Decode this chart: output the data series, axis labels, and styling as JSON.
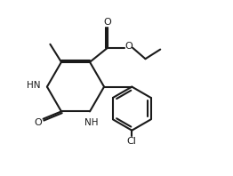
{
  "bg_color": "#ffffff",
  "line_color": "#1a1a1a",
  "lw": 1.5,
  "fs": 7.5,
  "fw": 2.62,
  "fh": 1.98,
  "dpi": 100,
  "xlim": [
    0,
    9
  ],
  "ylim": [
    0,
    7
  ]
}
